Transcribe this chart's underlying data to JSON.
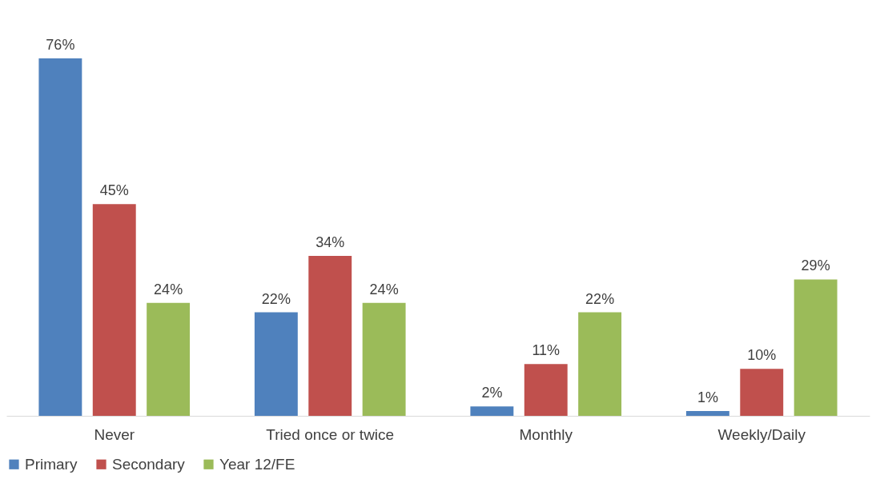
{
  "chart_data": {
    "type": "bar",
    "categories": [
      "Never",
      "Tried once or twice",
      "Monthly",
      "Weekly/Daily"
    ],
    "series": [
      {
        "name": "Primary",
        "color": "#4f81bd",
        "values": [
          76,
          22,
          2,
          1
        ],
        "value_labels": [
          "76%",
          "22%",
          "2%",
          "1%"
        ]
      },
      {
        "name": "Secondary",
        "color": "#c0504d",
        "values": [
          45,
          34,
          11,
          10
        ],
        "value_labels": [
          "45%",
          "34%",
          "11%",
          "10%"
        ]
      },
      {
        "name": "Year 12/FE",
        "color": "#9bbb59",
        "values": [
          24,
          24,
          22,
          29
        ],
        "value_labels": [
          "24%",
          "24%",
          "22%",
          "29%"
        ]
      }
    ],
    "legend": "bottom"
  }
}
